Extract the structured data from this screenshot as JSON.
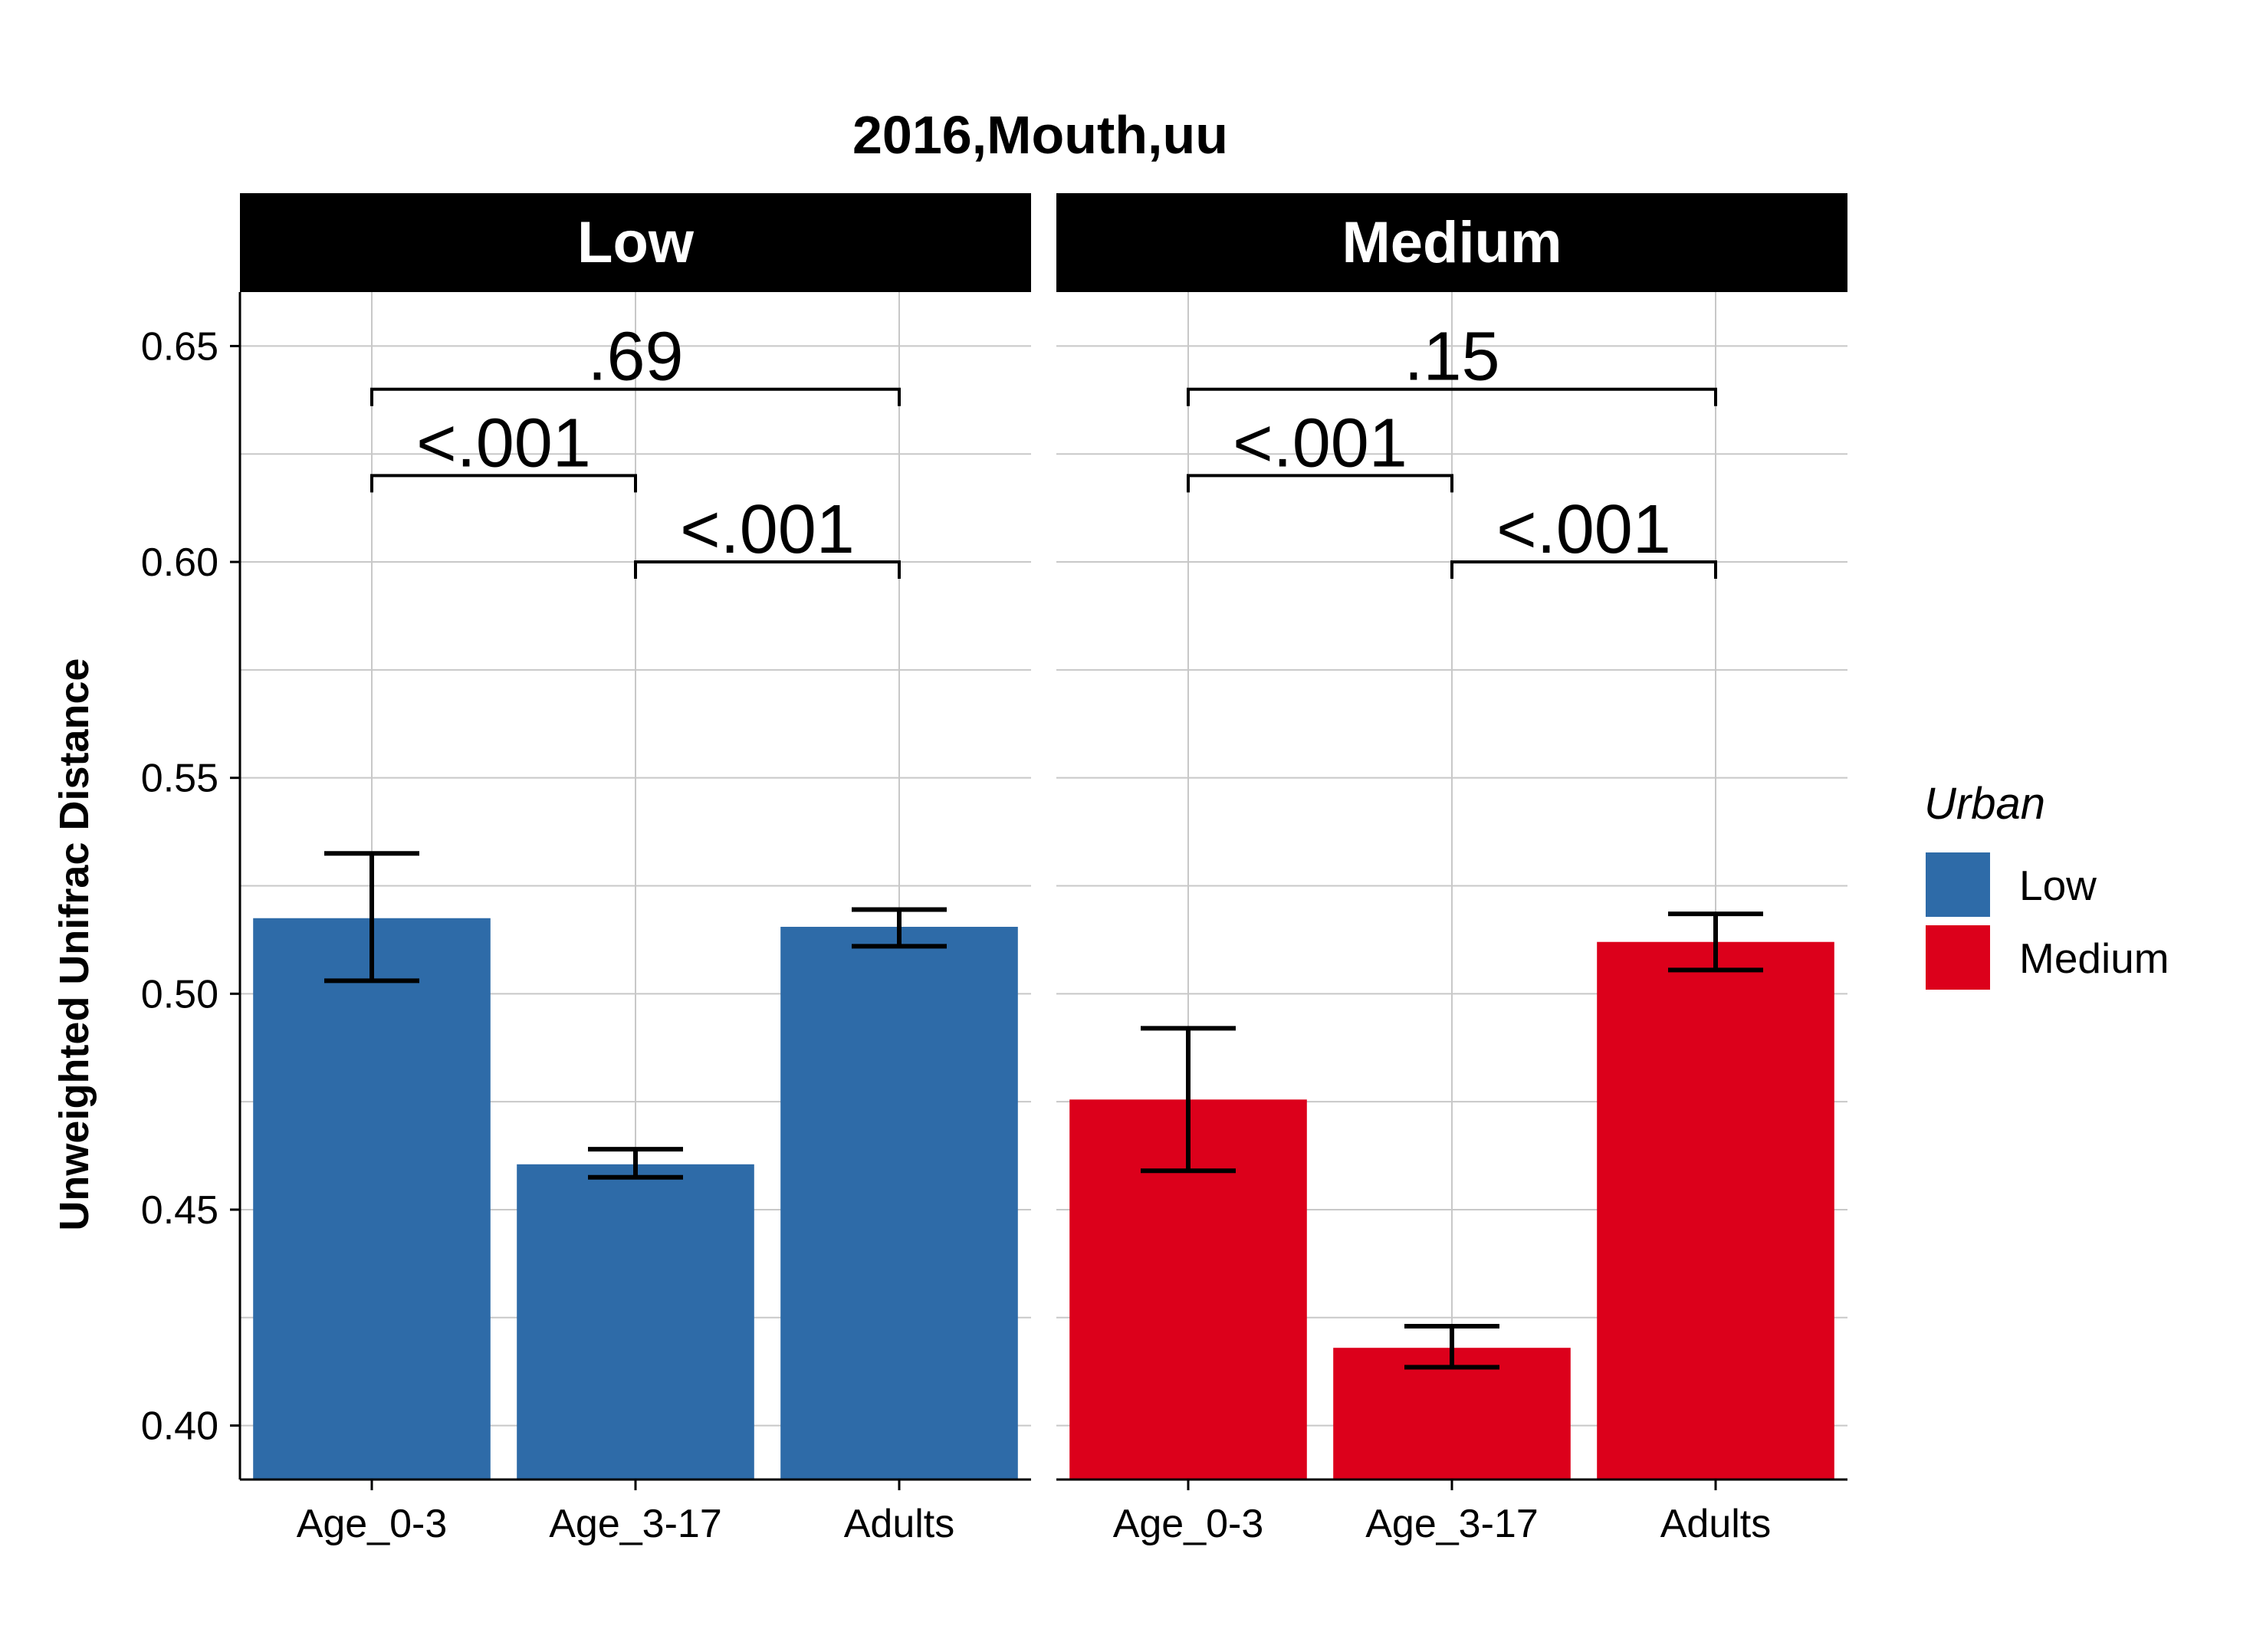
{
  "title": "2016,Mouth,uu",
  "y_axis": {
    "label": "Unweighted Unifrac Distance",
    "ticks": [
      0.4,
      0.45,
      0.5,
      0.55,
      0.6,
      0.65
    ],
    "tick_labels": [
      "0.40",
      "0.45",
      "0.50",
      "0.55",
      "0.60",
      "0.65"
    ]
  },
  "legend": {
    "title": "Urban",
    "items": [
      {
        "label": "Low",
        "color": "#2E6BA8"
      },
      {
        "label": "Medium",
        "color": "#DC001B"
      }
    ]
  },
  "chart_data": {
    "type": "bar",
    "categories": [
      "Age_0-3",
      "Age_3-17",
      "Adults"
    ],
    "ylim": [
      0.3875,
      0.6625
    ],
    "grid": true,
    "legend_position": "right",
    "panels": [
      {
        "name": "Low",
        "color": "#2E6BA8",
        "values": [
          0.5175,
          0.4605,
          0.5155
        ],
        "error_low": [
          0.503,
          0.4575,
          0.511
        ],
        "error_high": [
          0.5325,
          0.464,
          0.5195
        ],
        "comparisons": [
          {
            "from": 0,
            "to": 2,
            "level": 0.64,
            "label": ".69"
          },
          {
            "from": 0,
            "to": 1,
            "level": 0.62,
            "label": "<.001"
          },
          {
            "from": 1,
            "to": 2,
            "level": 0.6,
            "label": "<.001"
          }
        ]
      },
      {
        "name": "Medium",
        "color": "#DC001B",
        "values": [
          0.4755,
          0.418,
          0.512
        ],
        "error_low": [
          0.459,
          0.4135,
          0.5055
        ],
        "error_high": [
          0.492,
          0.423,
          0.5185
        ],
        "comparisons": [
          {
            "from": 0,
            "to": 2,
            "level": 0.64,
            "label": ".15"
          },
          {
            "from": 0,
            "to": 1,
            "level": 0.62,
            "label": "<.001"
          },
          {
            "from": 1,
            "to": 2,
            "level": 0.6,
            "label": "<.001"
          }
        ]
      }
    ]
  }
}
